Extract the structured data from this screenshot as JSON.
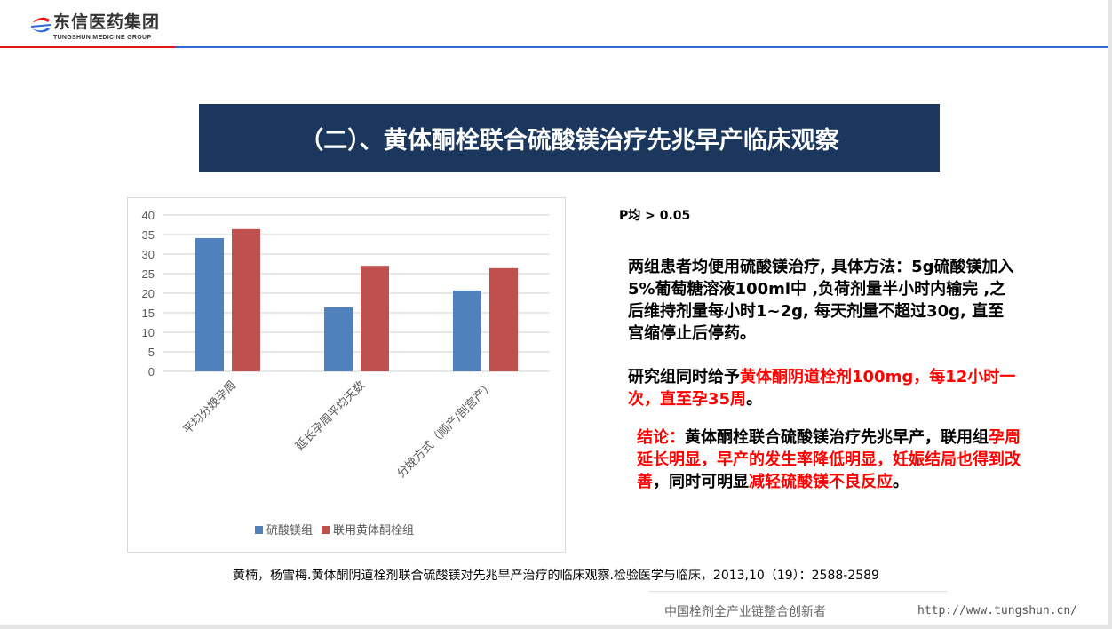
{
  "header": {
    "logo_cn": "东信医药集团",
    "logo_en": "TUNGSHUN MEDICINE GROUP",
    "colors": {
      "line_left": "#e8151b",
      "line_right": "#2f67d6"
    }
  },
  "title": "（二）、黄体酮栓联合硫酸镁治疗先兆早产临床观察",
  "chart_data": {
    "type": "bar",
    "categories": [
      "平均分娩孕周",
      "延长孕周平均天数",
      "分娩方式（顺产/剖宫产）"
    ],
    "series": [
      {
        "name": "硫酸镁组",
        "color": "#4f81bd",
        "values": [
          34.1,
          16.4,
          20.7
        ]
      },
      {
        "name": "联用黄体酮栓组",
        "color": "#c0504d",
        "values": [
          36.4,
          27.0,
          26.4
        ]
      }
    ],
    "ylim": [
      0,
      40
    ],
    "yticks": [
      "0",
      "5",
      "10",
      "15",
      "20",
      "25",
      "30",
      "35",
      "40"
    ],
    "grid": true,
    "legend": "bottom"
  },
  "pvalue": "P均 > 0.05",
  "method": {
    "text": "两组患者均便用硫酸镁治疗, 具体方法：5g硫酸镁加入5%葡萄糖溶液100ml中 ,负荷剂量半小时内输完 ,之后维持剂量每小时1~2g, 每天剂量不超过30g, 直至宫缩停止后停药。"
  },
  "study": {
    "black": "研究组同时给予",
    "red": "黄体酮阴道栓剂100mg，每12小时一次，直至孕35周",
    "end": "。"
  },
  "conclusion": {
    "label": "结论：",
    "p1": "黄体酮栓联合硫酸镁治疗先兆早产，联用组",
    "r1": "孕周延长明显，早产的发生率降低明显，妊娠结局也得到改善",
    "p2": "，同时可明显",
    "r2": "减轻硫酸镁不良反应",
    "end": "。"
  },
  "citation": "黄楠，杨雪梅.黄体酮阴道栓剂联合硫酸镁对先兆早产治疗的临床观察.检验医学与临床，2013,10（19）：2588-2589",
  "footer": {
    "slogan": "中国栓剂全产业链整合创新者",
    "url": "http://www.tungshun.cn/"
  }
}
